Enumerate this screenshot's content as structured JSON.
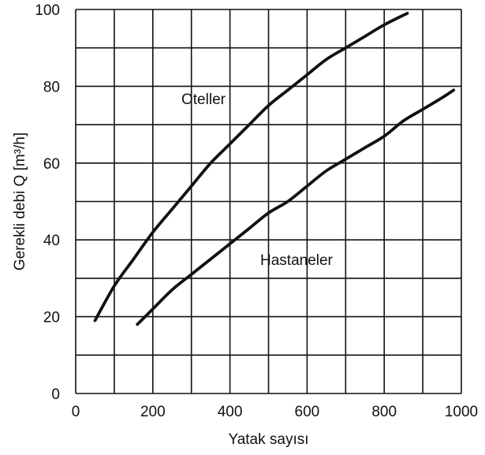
{
  "chart_data": {
    "type": "line",
    "xlabel": "Yatak sayısı",
    "ylabel": "Gerekli debi Q [m³/h]",
    "xlim": [
      0,
      1000
    ],
    "ylim": [
      0,
      100
    ],
    "x_ticks": [
      0,
      200,
      400,
      600,
      800,
      1000
    ],
    "y_ticks": [
      0,
      20,
      40,
      60,
      80,
      100
    ],
    "x_gridlines": [
      0,
      100,
      200,
      300,
      400,
      500,
      600,
      700,
      800,
      900,
      1000
    ],
    "y_gridlines": [
      0,
      10,
      20,
      30,
      40,
      50,
      60,
      70,
      80,
      90,
      100
    ],
    "grid": true,
    "legend": "none",
    "series": [
      {
        "name": "Oteller",
        "color": "#111111",
        "x": [
          50,
          100,
          150,
          200,
          250,
          300,
          350,
          400,
          450,
          500,
          550,
          600,
          650,
          700,
          750,
          800,
          860
        ],
        "y": [
          19,
          28,
          35,
          42,
          48,
          54,
          60,
          65,
          70,
          75,
          79,
          83,
          87,
          90,
          93,
          96,
          99
        ]
      },
      {
        "name": "Hastaneler",
        "color": "#111111",
        "x": [
          160,
          200,
          250,
          300,
          350,
          400,
          450,
          500,
          550,
          600,
          650,
          700,
          750,
          800,
          850,
          900,
          950,
          980
        ],
        "y": [
          18,
          22,
          27,
          31,
          35,
          39,
          43,
          47,
          50,
          54,
          58,
          61,
          64,
          67,
          71,
          74,
          77,
          79
        ]
      }
    ]
  }
}
